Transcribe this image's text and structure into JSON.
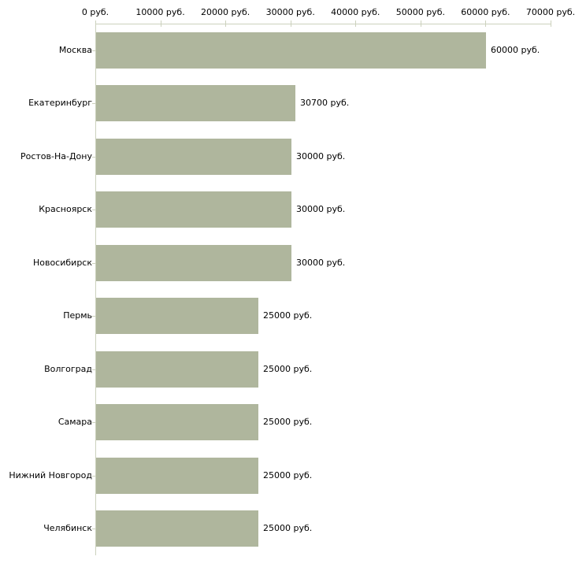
{
  "chart_data": {
    "type": "bar",
    "orientation": "horizontal",
    "title": "",
    "xlabel": "",
    "ylabel": "",
    "grid": false,
    "legend": null,
    "categories": [
      "Москва",
      "Екатеринбург",
      "Ростов-На-Дону",
      "Красноярск",
      "Новосибирск",
      "Пермь",
      "Волгоград",
      "Самара",
      "Нижний Новгород",
      "Челябинск"
    ],
    "values": [
      60000,
      30700,
      30000,
      30000,
      30000,
      25000,
      25000,
      25000,
      25000,
      25000
    ],
    "value_labels": [
      "60000 руб.",
      "30700 руб.",
      "30000 руб.",
      "30000 руб.",
      "30000 руб.",
      "25000 руб.",
      "25000 руб.",
      "25000 руб.",
      "25000 руб.",
      "25000 руб."
    ],
    "x_axis": {
      "position": "top",
      "min": 0,
      "max": 70000,
      "tick_values": [
        0,
        10000,
        20000,
        30000,
        40000,
        50000,
        60000,
        70000
      ],
      "tick_labels": [
        "0 руб.",
        "10000 руб.",
        "20000 руб.",
        "30000 руб.",
        "40000 руб.",
        "50000 руб.",
        "60000 руб.",
        "70000 руб."
      ]
    },
    "colors": {
      "bar": "#afb69d",
      "axis": "#ccd1bd",
      "text": "#000000",
      "background": "#ffffff"
    }
  }
}
